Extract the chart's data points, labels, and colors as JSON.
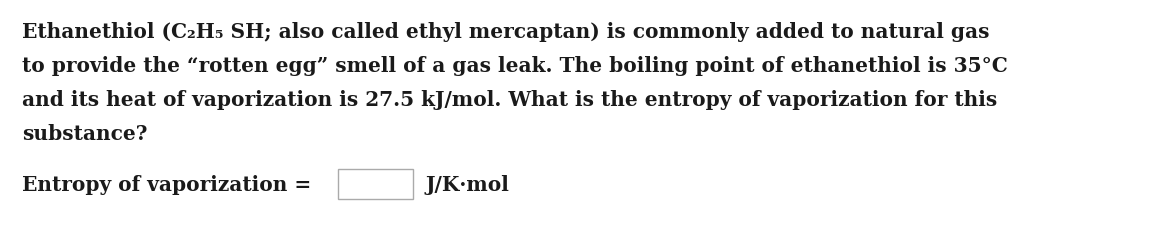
{
  "background_color": "#ffffff",
  "line1": "Ethanethiol (C₂H₅ SH; also called ethyl mercaptan) is commonly added to natural gas",
  "line2": "to provide the “rotten egg” smell of a gas leak. The boiling point of ethanethiol is 35°C",
  "line3": "and its heat of vaporization is 27.5 kJ/mol. What is the entropy of vaporization for this",
  "line4": "substance?",
  "label_text": "Entropy of vaporization =",
  "unit_text": "J/K·mol",
  "text_color": "#1a1a1a",
  "font_size": 14.5,
  "box_edge_color": "#aaaaaa",
  "box_face_color": "#ffffff"
}
